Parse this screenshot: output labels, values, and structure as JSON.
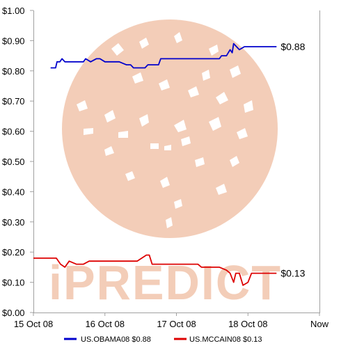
{
  "watermark": {
    "text": "iPREDICT",
    "color": "#f3cdb8"
  },
  "chart_data": {
    "type": "line",
    "title": "",
    "xlabel": "",
    "ylabel": "",
    "x_ticks": [
      "15 Oct 08",
      "16 Oct 08",
      "17 Oct 08",
      "18 Oct 08",
      "Now"
    ],
    "x_range_days": [
      0,
      4
    ],
    "ylim": [
      0.0,
      1.0
    ],
    "y_ticks": [
      "$0.00",
      "$0.10",
      "$0.20",
      "$0.30",
      "$0.40",
      "$0.50",
      "$0.60",
      "$0.70",
      "$0.80",
      "$0.90",
      "$1.00"
    ],
    "y_tick_values": [
      0,
      0.1,
      0.2,
      0.3,
      0.4,
      0.5,
      0.6,
      0.7,
      0.8,
      0.9,
      1.0
    ],
    "grid": false,
    "legend_position": "bottom",
    "series": [
      {
        "name": "US.OBAMA08 $0.88",
        "color": "#0000cc",
        "end_label": "$0.88",
        "points": [
          [
            0.24,
            0.81
          ],
          [
            0.31,
            0.81
          ],
          [
            0.33,
            0.83
          ],
          [
            0.37,
            0.83
          ],
          [
            0.4,
            0.84
          ],
          [
            0.44,
            0.83
          ],
          [
            0.7,
            0.83
          ],
          [
            0.73,
            0.84
          ],
          [
            0.8,
            0.83
          ],
          [
            0.88,
            0.84
          ],
          [
            0.93,
            0.84
          ],
          [
            1.0,
            0.83
          ],
          [
            1.2,
            0.83
          ],
          [
            1.3,
            0.82
          ],
          [
            1.36,
            0.82
          ],
          [
            1.4,
            0.81
          ],
          [
            1.56,
            0.81
          ],
          [
            1.6,
            0.82
          ],
          [
            1.75,
            0.82
          ],
          [
            1.78,
            0.84
          ],
          [
            2.0,
            0.84
          ],
          [
            2.2,
            0.84
          ],
          [
            2.4,
            0.84
          ],
          [
            2.6,
            0.84
          ],
          [
            2.63,
            0.85
          ],
          [
            2.7,
            0.85
          ],
          [
            2.75,
            0.87
          ],
          [
            2.78,
            0.86
          ],
          [
            2.8,
            0.89
          ],
          [
            2.88,
            0.87
          ],
          [
            2.95,
            0.88
          ],
          [
            3.4,
            0.88
          ]
        ]
      },
      {
        "name": "US.MCCAIN08 $0.13",
        "color": "#dd0000",
        "end_label": "$0.13",
        "points": [
          [
            0.0,
            0.18
          ],
          [
            0.32,
            0.18
          ],
          [
            0.38,
            0.16
          ],
          [
            0.44,
            0.15
          ],
          [
            0.5,
            0.17
          ],
          [
            0.6,
            0.16
          ],
          [
            0.7,
            0.16
          ],
          [
            0.78,
            0.17
          ],
          [
            0.9,
            0.17
          ],
          [
            1.1,
            0.17
          ],
          [
            1.3,
            0.17
          ],
          [
            1.45,
            0.17
          ],
          [
            1.58,
            0.19
          ],
          [
            1.62,
            0.19
          ],
          [
            1.66,
            0.16
          ],
          [
            1.8,
            0.16
          ],
          [
            2.0,
            0.16
          ],
          [
            2.2,
            0.16
          ],
          [
            2.3,
            0.16
          ],
          [
            2.35,
            0.15
          ],
          [
            2.6,
            0.15
          ],
          [
            2.7,
            0.14
          ],
          [
            2.75,
            0.13
          ],
          [
            2.8,
            0.1
          ],
          [
            2.83,
            0.13
          ],
          [
            2.88,
            0.13
          ],
          [
            2.93,
            0.09
          ],
          [
            3.0,
            0.1
          ],
          [
            3.05,
            0.13
          ],
          [
            3.2,
            0.13
          ],
          [
            3.4,
            0.13
          ]
        ]
      }
    ]
  }
}
